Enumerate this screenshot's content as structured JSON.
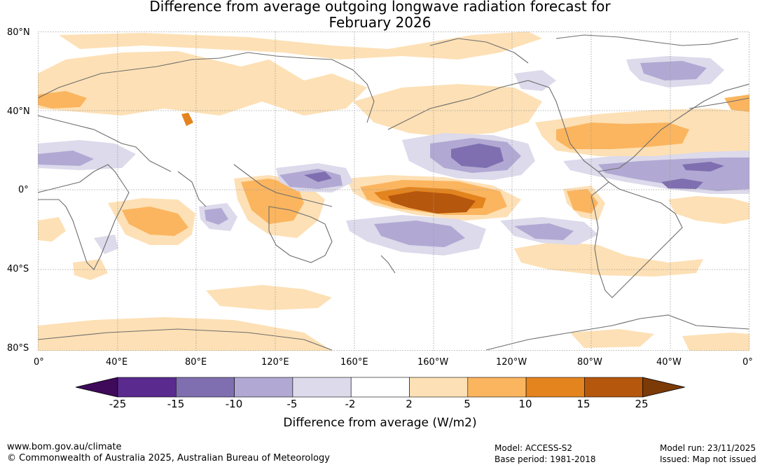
{
  "title_line1": "Difference from average outgoing longwave radiation forecast for",
  "title_line2": "February 2026",
  "lat_labels": [
    "80°N",
    "40°N",
    "0°",
    "40°S",
    "80°S"
  ],
  "lon_labels": [
    "0°",
    "40°E",
    "80°E",
    "120°E",
    "160°E",
    "160°W",
    "120°W",
    "80°W",
    "40°W",
    "0°"
  ],
  "colorbar": {
    "ticks": [
      "-25",
      "-15",
      "-10",
      "-5",
      "-2",
      "2",
      "5",
      "10",
      "15",
      "25"
    ],
    "colors": [
      "#3f0a5a",
      "#5a2a8f",
      "#7f6fb0",
      "#b1a9d3",
      "#dcdaeb",
      "#ffffff",
      "#fde0b5",
      "#fbb55f",
      "#e3841e",
      "#b5570d",
      "#7c3a07"
    ],
    "label": "Difference from average (W/m2)"
  },
  "footer": {
    "url": "www.bom.gov.au/climate",
    "copyright": "© Commonwealth of Australia 2025, Australian Bureau of Meteorology",
    "model": "Model: ACCESS-S2",
    "base_period": "Base period: 1981-2018",
    "model_run": "Model run: 23/11/2025",
    "issued": "Issued: Map not issued"
  }
}
